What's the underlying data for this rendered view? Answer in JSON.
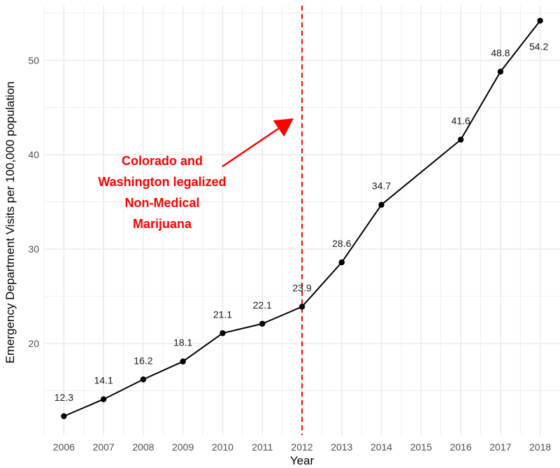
{
  "chart_data": {
    "type": "line",
    "title": "",
    "xlabel": "Year",
    "ylabel": "Emergency Department Visits per 100,000 population",
    "x_ticks": [
      "2006",
      "2007",
      "2008",
      "2009",
      "2010",
      "2011",
      "2012",
      "2013",
      "2014",
      "2015",
      "2016",
      "2017",
      "2018"
    ],
    "y_ticks": [
      "20",
      "30",
      "40",
      "50"
    ],
    "xlim": [
      2005.5,
      2018.5
    ],
    "ylim": [
      10.3,
      55.8
    ],
    "grid": true,
    "series": [
      {
        "x": [
          2006,
          2007,
          2008,
          2009,
          2010,
          2011,
          2012,
          2013,
          2014,
          2016,
          2017,
          2018
        ],
        "y": [
          12.3,
          14.1,
          16.2,
          18.1,
          21.1,
          22.1,
          23.9,
          28.6,
          34.7,
          41.6,
          48.8,
          54.2
        ],
        "labels": [
          "12.3",
          "14.1",
          "16.2",
          "18.1",
          "21.1",
          "22.1",
          "23.9",
          "28.6",
          "34.7",
          "41.6",
          "48.8",
          "54.2"
        ]
      }
    ],
    "reference_line": {
      "x": 2012,
      "style": "dashed",
      "color": "#ff0000"
    },
    "annotation": {
      "lines": [
        "Colorado and",
        "Washington legalized",
        "Non-Medical",
        "Marijuana"
      ],
      "color": "#ff0000",
      "arrow_to": {
        "x": 2012,
        "y": 44
      }
    },
    "colors": {
      "line": "#000000",
      "grid": "#ebebeb",
      "accent": "#ff0000"
    }
  }
}
